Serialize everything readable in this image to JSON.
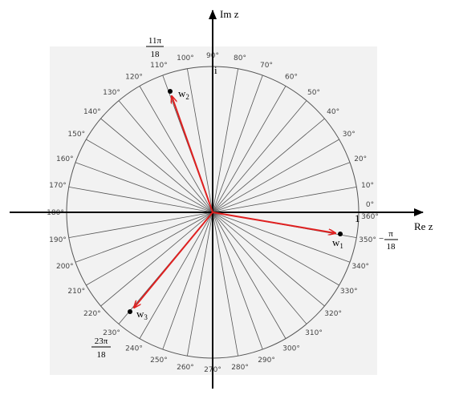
{
  "axes": {
    "imaginary": "Im z",
    "real": "Re z",
    "unit_imaginary": "i",
    "unit_real": "1"
  },
  "degree_labels": [
    "0°",
    "10°",
    "20°",
    "30°",
    "40°",
    "50°",
    "60°",
    "70°",
    "80°",
    "90°",
    "100°",
    "110°",
    "120°",
    "130°",
    "140°",
    "150°",
    "160°",
    "170°",
    "180°",
    "190°",
    "200°",
    "210°",
    "220°",
    "230°",
    "240°",
    "250°",
    "260°",
    "270°",
    "280°",
    "290°",
    "300°",
    "310°",
    "320°",
    "330°",
    "340°",
    "350°"
  ],
  "full_turn_label": "360°",
  "points": [
    {
      "label": "w",
      "sub": "1"
    },
    {
      "label": "w",
      "sub": "2"
    },
    {
      "label": "w",
      "sub": "3"
    }
  ],
  "angle_labels": [
    {
      "sign": "−",
      "numerator": "π",
      "denominator": "18"
    },
    {
      "numerator": "11π",
      "denominator": "18"
    },
    {
      "numerator": "23π",
      "denominator": "18"
    }
  ]
}
